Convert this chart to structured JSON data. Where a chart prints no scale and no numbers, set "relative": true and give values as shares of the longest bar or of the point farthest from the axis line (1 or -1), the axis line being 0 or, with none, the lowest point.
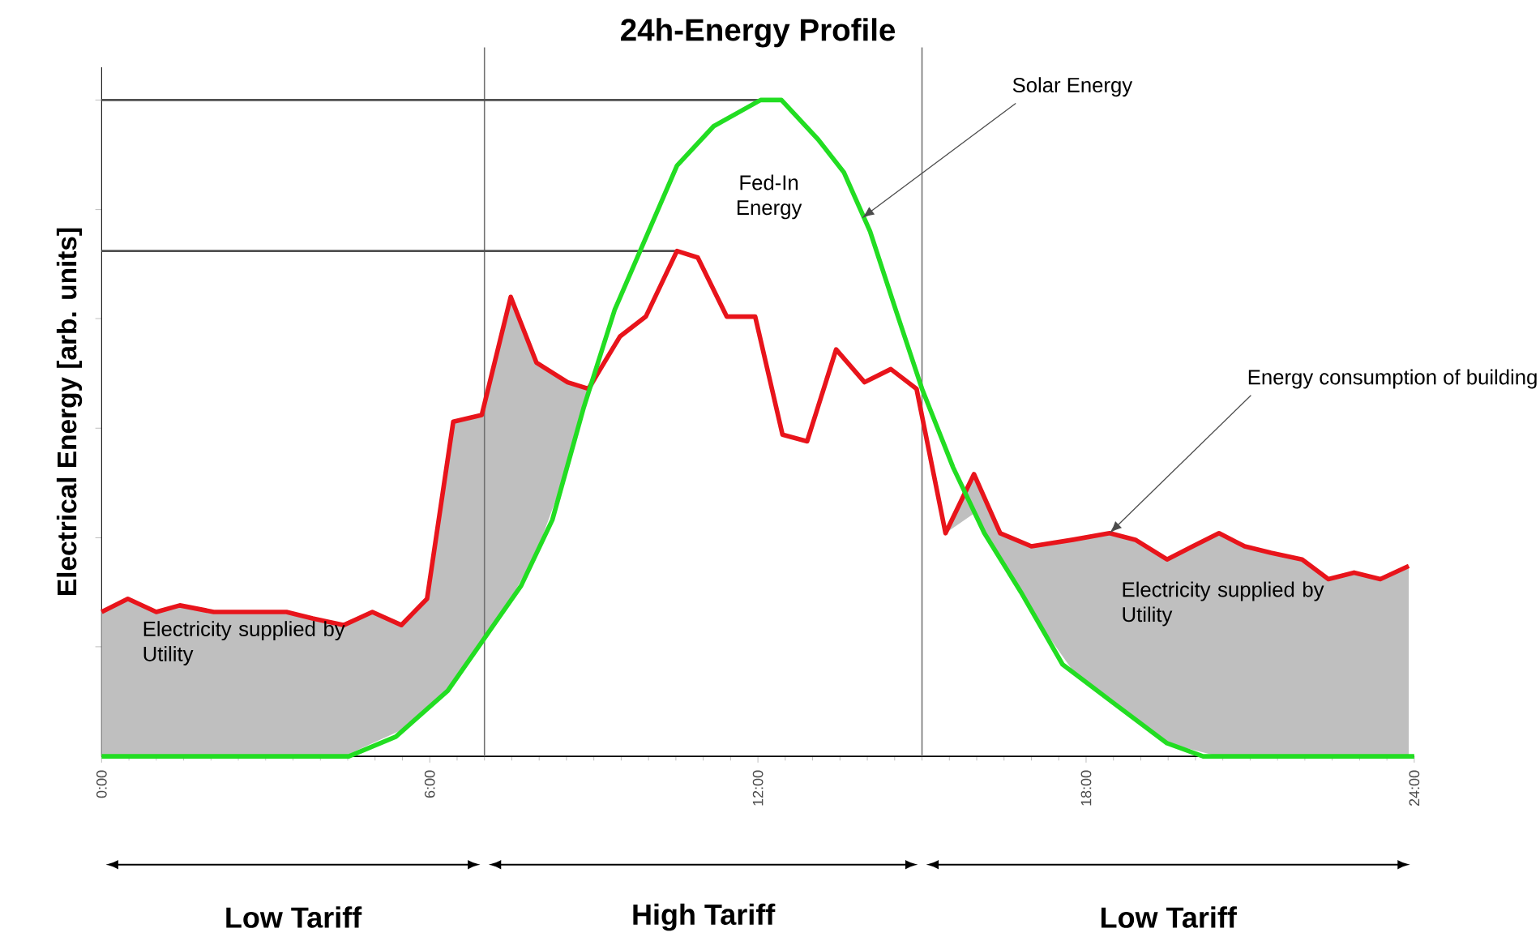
{
  "chart_data": {
    "type": "line",
    "title": "24h-Energy Profile",
    "ylabel": "Electrical Energy [arb. units]",
    "relative": true,
    "xlim": [
      0,
      24
    ],
    "xticks": [
      {
        "value": 0,
        "label": "0:00"
      },
      {
        "value": 6,
        "label": "6:00"
      },
      {
        "value": 12,
        "label": "12:00"
      },
      {
        "value": 18,
        "label": "18:00"
      },
      {
        "value": 24,
        "label": "24:00"
      }
    ],
    "series": [
      {
        "color": "#e8141b",
        "lower": [
          0,
          0,
          0,
          0,
          0,
          0,
          0,
          0,
          0,
          0.02,
          0.04,
          0.07,
          0.11,
          0.17,
          0.24,
          0.31,
          0.44,
          0.55,
          0.64,
          0.67,
          0.77,
          0.76,
          0.67,
          0.67,
          0.49,
          0.48,
          0.62,
          0.57,
          0.59,
          0.56,
          0.34,
          0.37,
          0.3,
          0.22,
          0.13,
          0.09,
          0.06,
          0.02,
          0.01,
          0,
          0,
          0,
          0,
          0,
          0,
          0,
          0
        ],
        "upper": [
          0.22,
          0.24,
          0.22,
          0.23,
          0.22,
          0.22,
          0.22,
          0.21,
          0.2,
          0.22,
          0.2,
          0.24,
          0.51,
          0.52,
          0.7,
          0.6,
          0.57,
          0.56,
          0.64,
          0.67,
          0.77,
          0.76,
          0.67,
          0.67,
          0.49,
          0.48,
          0.62,
          0.57,
          0.59,
          0.56,
          0.34,
          0.43,
          0.34,
          0.32,
          0.33,
          0.34,
          0.33,
          0.3,
          0.32,
          0.34,
          0.32,
          0.31,
          0.3,
          0.27,
          0.28,
          0.27,
          0.29
        ],
        "x": [
          0,
          0.48,
          1.0,
          1.43,
          2.05,
          2.71,
          3.38,
          3.86,
          4.43,
          4.95,
          5.48,
          5.95,
          6.43,
          6.95,
          7.48,
          7.95,
          8.52,
          8.9,
          9.48,
          9.95,
          10.52,
          10.9,
          11.43,
          11.95,
          12.45,
          12.9,
          13.43,
          13.95,
          14.43,
          14.9,
          15.43,
          15.95,
          16.43,
          17.0,
          17.76,
          18.43,
          18.9,
          19.48,
          19.95,
          20.43,
          20.9,
          21.38,
          21.95,
          22.43,
          22.9,
          23.38,
          23.9
        ],
        "values": [
          0.22,
          0.24,
          0.22,
          0.23,
          0.22,
          0.22,
          0.22,
          0.21,
          0.2,
          0.22,
          0.2,
          0.24,
          0.51,
          0.52,
          0.7,
          0.6,
          0.57,
          0.56,
          0.64,
          0.67,
          0.77,
          0.76,
          0.67,
          0.67,
          0.49,
          0.48,
          0.62,
          0.57,
          0.59,
          0.56,
          0.34,
          0.43,
          0.34,
          0.32,
          0.33,
          0.34,
          0.33,
          0.3,
          0.32,
          0.34,
          0.32,
          0.31,
          0.3,
          0.27,
          0.28,
          0.27,
          0.29
        ]
      },
      {
        "color": "#22dd22",
        "x": [
          0,
          4.52,
          5.38,
          6.33,
          7.0,
          7.67,
          8.24,
          8.81,
          9.38,
          9.95,
          10.52,
          11.19,
          12.05,
          12.43,
          13.1,
          13.57,
          14.05,
          14.52,
          15.0,
          15.57,
          16.14,
          16.81,
          17.57,
          18.52,
          19.48,
          20.14,
          24
        ],
        "values": [
          0,
          0,
          0.03,
          0.1,
          0.18,
          0.26,
          0.36,
          0.53,
          0.68,
          0.79,
          0.9,
          0.96,
          1.0,
          1.0,
          0.94,
          0.89,
          0.8,
          0.68,
          0.56,
          0.44,
          0.34,
          0.25,
          0.14,
          0.08,
          0.02,
          0,
          0
        ]
      }
    ],
    "ref_lines": [
      {
        "axis": "x",
        "value": 7,
        "color": "#707070"
      },
      {
        "axis": "x",
        "value": 15,
        "color": "#707070"
      },
      {
        "axis": "y",
        "value": 1.0,
        "color": "#505050"
      },
      {
        "axis": "y",
        "value": 0.77,
        "color": "#505050"
      }
    ],
    "annotations": [
      "Fed-In Energy",
      {
        "text": "Solar Energy",
        "x": 13.9,
        "y": 0.82
      },
      {
        "text": "Energy consumption of building",
        "x": 18.43,
        "y": 0.34
      },
      "Low Tariff",
      "High Tariff",
      "Low Tariff",
      "Electricity supplied by Utility",
      "Electricity supplied by Utility"
    ],
    "grid": false
  }
}
